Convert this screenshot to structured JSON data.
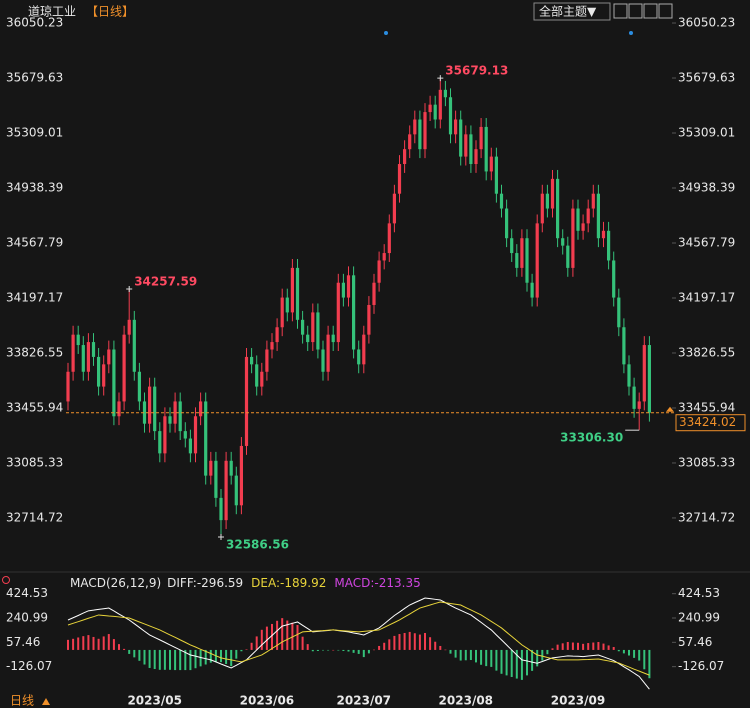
{
  "chart_data": {
    "type": "candlestick",
    "title": "道琼工业",
    "period": "【日线】",
    "theme_button": "全部主题▼",
    "footer_period": "日线",
    "categories": [
      null,
      null,
      null,
      null,
      null,
      null,
      null,
      null,
      null,
      null,
      null,
      null,
      null,
      null,
      null,
      null,
      null,
      "2023/05",
      null,
      null,
      null,
      null,
      null,
      null,
      null,
      null,
      null,
      null,
      null,
      null,
      null,
      null,
      null,
      null,
      null,
      null,
      null,
      null,
      null,
      "2023/06",
      null,
      null,
      null,
      null,
      null,
      null,
      null,
      null,
      null,
      null,
      null,
      null,
      null,
      null,
      null,
      null,
      null,
      null,
      "2023/07",
      null,
      null,
      null,
      null,
      null,
      null,
      null,
      null,
      null,
      null,
      null,
      null,
      null,
      null,
      null,
      null,
      null,
      null,
      null,
      "2023/08",
      null,
      null,
      null,
      null,
      null,
      null,
      null,
      null,
      null,
      null,
      null,
      null,
      null,
      null,
      null,
      null,
      null,
      null,
      null,
      null,
      null,
      "2023/09",
      null,
      null,
      null,
      null,
      null,
      null,
      null,
      null,
      null,
      null,
      null,
      null,
      null,
      null
    ],
    "candles": [
      [
        33500,
        33760,
        33440,
        33700
      ],
      [
        33700,
        34010,
        33640,
        33950
      ],
      [
        33950,
        34010,
        33820,
        33880
      ],
      [
        33880,
        33940,
        33640,
        33700
      ],
      [
        33700,
        33960,
        33640,
        33900
      ],
      [
        33900,
        33960,
        33740,
        33800
      ],
      [
        33800,
        33860,
        33540,
        33600
      ],
      [
        33600,
        33810,
        33540,
        33750
      ],
      [
        33750,
        33910,
        33690,
        33850
      ],
      [
        33850,
        33910,
        33340,
        33400
      ],
      [
        33400,
        33560,
        33340,
        33500
      ],
      [
        33500,
        34010,
        33440,
        33950
      ],
      [
        33950,
        34257.59,
        33890,
        34050
      ],
      [
        34050,
        34110,
        33640,
        33700
      ],
      [
        33700,
        33760,
        33440,
        33500
      ],
      [
        33500,
        33560,
        33290,
        33350
      ],
      [
        33350,
        33660,
        33290,
        33600
      ],
      [
        33600,
        33660,
        33240,
        33300
      ],
      [
        33300,
        33360,
        33090,
        33150
      ],
      [
        33150,
        33460,
        33090,
        33400
      ],
      [
        33400,
        33460,
        33290,
        33350
      ],
      [
        33350,
        33560,
        33290,
        33500
      ],
      [
        33500,
        33560,
        33240,
        33300
      ],
      [
        33300,
        33360,
        33190,
        33250
      ],
      [
        33250,
        33310,
        33090,
        33150
      ],
      [
        33150,
        33460,
        33090,
        33400
      ],
      [
        33400,
        33560,
        33340,
        33500
      ],
      [
        33500,
        33560,
        32940,
        33000
      ],
      [
        33000,
        33160,
        32940,
        33100
      ],
      [
        33100,
        33160,
        32790,
        32850
      ],
      [
        32850,
        32910,
        32586.56,
        32700
      ],
      [
        32700,
        33160,
        32640,
        33100
      ],
      [
        33100,
        33160,
        32940,
        33000
      ],
      [
        33000,
        33060,
        32740,
        32800
      ],
      [
        32800,
        33260,
        32740,
        33200
      ],
      [
        33200,
        33860,
        33140,
        33800
      ],
      [
        33800,
        33860,
        33690,
        33750
      ],
      [
        33750,
        33810,
        33540,
        33600
      ],
      [
        33600,
        33760,
        33540,
        33700
      ],
      [
        33700,
        33910,
        33640,
        33850
      ],
      [
        33850,
        33960,
        33790,
        33900
      ],
      [
        33900,
        34060,
        33840,
        34000
      ],
      [
        34000,
        34260,
        33940,
        34200
      ],
      [
        34200,
        34260,
        34040,
        34100
      ],
      [
        34100,
        34460,
        34040,
        34400
      ],
      [
        34400,
        34460,
        33990,
        34050
      ],
      [
        34050,
        34110,
        33890,
        33950
      ],
      [
        33950,
        34010,
        33840,
        33900
      ],
      [
        33900,
        34160,
        33840,
        34100
      ],
      [
        34100,
        34160,
        33790,
        33850
      ],
      [
        33850,
        33910,
        33640,
        33700
      ],
      [
        33700,
        34010,
        33640,
        33950
      ],
      [
        33950,
        34010,
        33840,
        33900
      ],
      [
        33900,
        34360,
        33840,
        34300
      ],
      [
        34300,
        34360,
        34140,
        34200
      ],
      [
        34200,
        34410,
        34140,
        34350
      ],
      [
        34350,
        34410,
        33790,
        33850
      ],
      [
        33850,
        33910,
        33690,
        33750
      ],
      [
        33750,
        34010,
        33690,
        33950
      ],
      [
        33950,
        34210,
        33890,
        34150
      ],
      [
        34150,
        34360,
        34090,
        34300
      ],
      [
        34300,
        34510,
        34240,
        34450
      ],
      [
        34450,
        34560,
        34390,
        34500
      ],
      [
        34500,
        34760,
        34440,
        34700
      ],
      [
        34700,
        34960,
        34640,
        34900
      ],
      [
        34900,
        35160,
        34840,
        35100
      ],
      [
        35100,
        35260,
        35040,
        35200
      ],
      [
        35200,
        35360,
        35140,
        35300
      ],
      [
        35300,
        35460,
        35240,
        35400
      ],
      [
        35400,
        35460,
        35140,
        35200
      ],
      [
        35200,
        35510,
        35140,
        35450
      ],
      [
        35450,
        35560,
        35390,
        35500
      ],
      [
        35500,
        35560,
        35340,
        35400
      ],
      [
        35400,
        35679.13,
        35340,
        35600
      ],
      [
        35600,
        35660,
        35490,
        35550
      ],
      [
        35550,
        35610,
        35240,
        35300
      ],
      [
        35300,
        35460,
        35240,
        35400
      ],
      [
        35400,
        35460,
        35090,
        35150
      ],
      [
        35150,
        35360,
        35090,
        35300
      ],
      [
        35300,
        35360,
        35040,
        35100
      ],
      [
        35100,
        35260,
        35040,
        35200
      ],
      [
        35200,
        35410,
        35140,
        35350
      ],
      [
        35350,
        35410,
        34990,
        35050
      ],
      [
        35050,
        35210,
        34990,
        35150
      ],
      [
        35150,
        35210,
        34840,
        34900
      ],
      [
        34900,
        34960,
        34740,
        34800
      ],
      [
        34800,
        34860,
        34540,
        34600
      ],
      [
        34600,
        34660,
        34440,
        34500
      ],
      [
        34500,
        34560,
        34340,
        34400
      ],
      [
        34400,
        34660,
        34340,
        34600
      ],
      [
        34600,
        34660,
        34240,
        34300
      ],
      [
        34300,
        34360,
        34140,
        34200
      ],
      [
        34200,
        34760,
        34140,
        34700
      ],
      [
        34700,
        34960,
        34640,
        34900
      ],
      [
        34900,
        34960,
        34740,
        34800
      ],
      [
        34800,
        35060,
        34740,
        35000
      ],
      [
        35000,
        35060,
        34540,
        34600
      ],
      [
        34600,
        34660,
        34490,
        34550
      ],
      [
        34550,
        34610,
        34340,
        34400
      ],
      [
        34400,
        34860,
        34340,
        34800
      ],
      [
        34800,
        34860,
        34590,
        34650
      ],
      [
        34650,
        34760,
        34590,
        34700
      ],
      [
        34700,
        34860,
        34640,
        34800
      ],
      [
        34800,
        34960,
        34740,
        34900
      ],
      [
        34900,
        34960,
        34540,
        34600
      ],
      [
        34600,
        34710,
        34540,
        34650
      ],
      [
        34650,
        34710,
        34390,
        34450
      ],
      [
        34450,
        34510,
        34140,
        34200
      ],
      [
        34200,
        34260,
        33940,
        34000
      ],
      [
        34000,
        34060,
        33690,
        33750
      ],
      [
        33750,
        33810,
        33540,
        33600
      ],
      [
        33600,
        33660,
        33390,
        33450
      ],
      [
        33450,
        33560,
        33306.3,
        33500
      ],
      [
        33500,
        33940,
        33440,
        33880
      ],
      [
        33880,
        33940,
        33364.02,
        33424.02
      ]
    ],
    "ylim": [
      32364,
      36138
    ],
    "yticks": [
      36050.23,
      35679.63,
      35309.01,
      34938.39,
      34567.79,
      34197.17,
      33826.55,
      33455.94,
      33085.33,
      32714.72
    ],
    "annotations": [
      "34257.59",
      "35679.13",
      "32586.56",
      "33306.30"
    ],
    "up_color": "#f23d4f",
    "down_color": "#35c27a",
    "high_label_color": "#ff4a62",
    "low_label_color": "#3fcf86",
    "last_price_color": "#f0902a",
    "macd": {
      "title": "MACD(26,12,9)",
      "diff_label": "DIFF:",
      "dea_label": "DEA:",
      "macd_label": "MACD:",
      "diff_color": "#ffffff",
      "dea_color": "#e8d43a",
      "macd_color": "#d045e0",
      "ylim": [
        -340,
        490
      ],
      "yticks": [
        424.53,
        240.99,
        57.46,
        -126.07
      ],
      "diff": [
        226,
        243,
        260,
        278,
        295,
        300,
        306,
        311,
        316,
        294,
        271,
        249,
        226,
        198,
        170,
        141,
        113,
        94,
        76,
        57,
        38,
        19,
        0,
        -19,
        -38,
        -47,
        -57,
        -66,
        -75,
        -90,
        -106,
        -121,
        -136,
        -116,
        -95,
        -75,
        -37,
        0,
        38,
        74,
        109,
        145,
        180,
        190,
        201,
        211,
        186,
        161,
        136,
        140,
        144,
        147,
        151,
        146,
        141,
        136,
        128,
        121,
        113,
        131,
        148,
        166,
        197,
        229,
        260,
        286,
        313,
        339,
        357,
        374,
        392,
        387,
        382,
        377,
        357,
        336,
        316,
        299,
        281,
        264,
        236,
        208,
        179,
        151,
        113,
        76,
        38,
        0,
        -38,
        -75,
        -83,
        -92,
        -100,
        -87,
        -73,
        -60,
        -55,
        -50,
        -45,
        -47,
        -48,
        -50,
        -46,
        -42,
        -38,
        -52,
        -66,
        -80,
        -103,
        -127,
        -150,
        -175,
        -200,
        -248,
        -296.59
      ],
      "dea": [
        188,
        201,
        213,
        226,
        239,
        251,
        264,
        260,
        256,
        253,
        249,
        245,
        241,
        226,
        211,
        196,
        181,
        166,
        151,
        132,
        113,
        95,
        76,
        57,
        38,
        22,
        5,
        -11,
        -27,
        -44,
        -60,
        -68,
        -75,
        -83,
        -90,
        -77,
        -64,
        -51,
        -38,
        -14,
        11,
        35,
        60,
        79,
        98,
        117,
        136,
        139,
        141,
        144,
        146,
        149,
        151,
        148,
        145,
        142,
        139,
        136,
        140,
        144,
        147,
        151,
        170,
        189,
        207,
        226,
        249,
        271,
        294,
        316,
        328,
        339,
        351,
        362,
        356,
        350,
        345,
        339,
        320,
        302,
        283,
        264,
        240,
        215,
        191,
        166,
        134,
        102,
        70,
        38,
        13,
        -13,
        -38,
        -47,
        -57,
        -66,
        -75,
        -75,
        -75,
        -75,
        -75,
        -73,
        -72,
        -70,
        -68,
        -76,
        -83,
        -91,
        -98,
        -114,
        -129,
        -145,
        -160,
        -175,
        -189.92
      ],
      "hist": [
        76,
        84,
        94,
        104,
        112,
        98,
        84,
        102,
        120,
        82,
        44,
        8,
        -30,
        -56,
        -82,
        -110,
        -136,
        -144,
        -150,
        -150,
        -150,
        -152,
        -152,
        -152,
        -152,
        -138,
        -124,
        -110,
        -96,
        -92,
        -92,
        -106,
        -122,
        -66,
        -10,
        4,
        54,
        102,
        152,
        176,
        196,
        220,
        240,
        222,
        206,
        188,
        100,
        44,
        -10,
        -8,
        -4,
        -4,
        0,
        -4,
        -8,
        -12,
        -22,
        -30,
        -54,
        -26,
        2,
        30,
        54,
        80,
        106,
        120,
        128,
        136,
        126,
        116,
        128,
        96,
        62,
        30,
        2,
        -28,
        -58,
        -80,
        -78,
        -76,
        -94,
        -112,
        -122,
        -128,
        -156,
        -180,
        -192,
        -204,
        -216,
        -226,
        -192,
        -158,
        -124,
        -80,
        -32,
        12,
        40,
        50,
        60,
        56,
        54,
        46,
        52,
        56,
        60,
        48,
        34,
        22,
        -10,
        -26,
        -42,
        -60,
        -80,
        -146,
        -213.35
      ]
    }
  }
}
